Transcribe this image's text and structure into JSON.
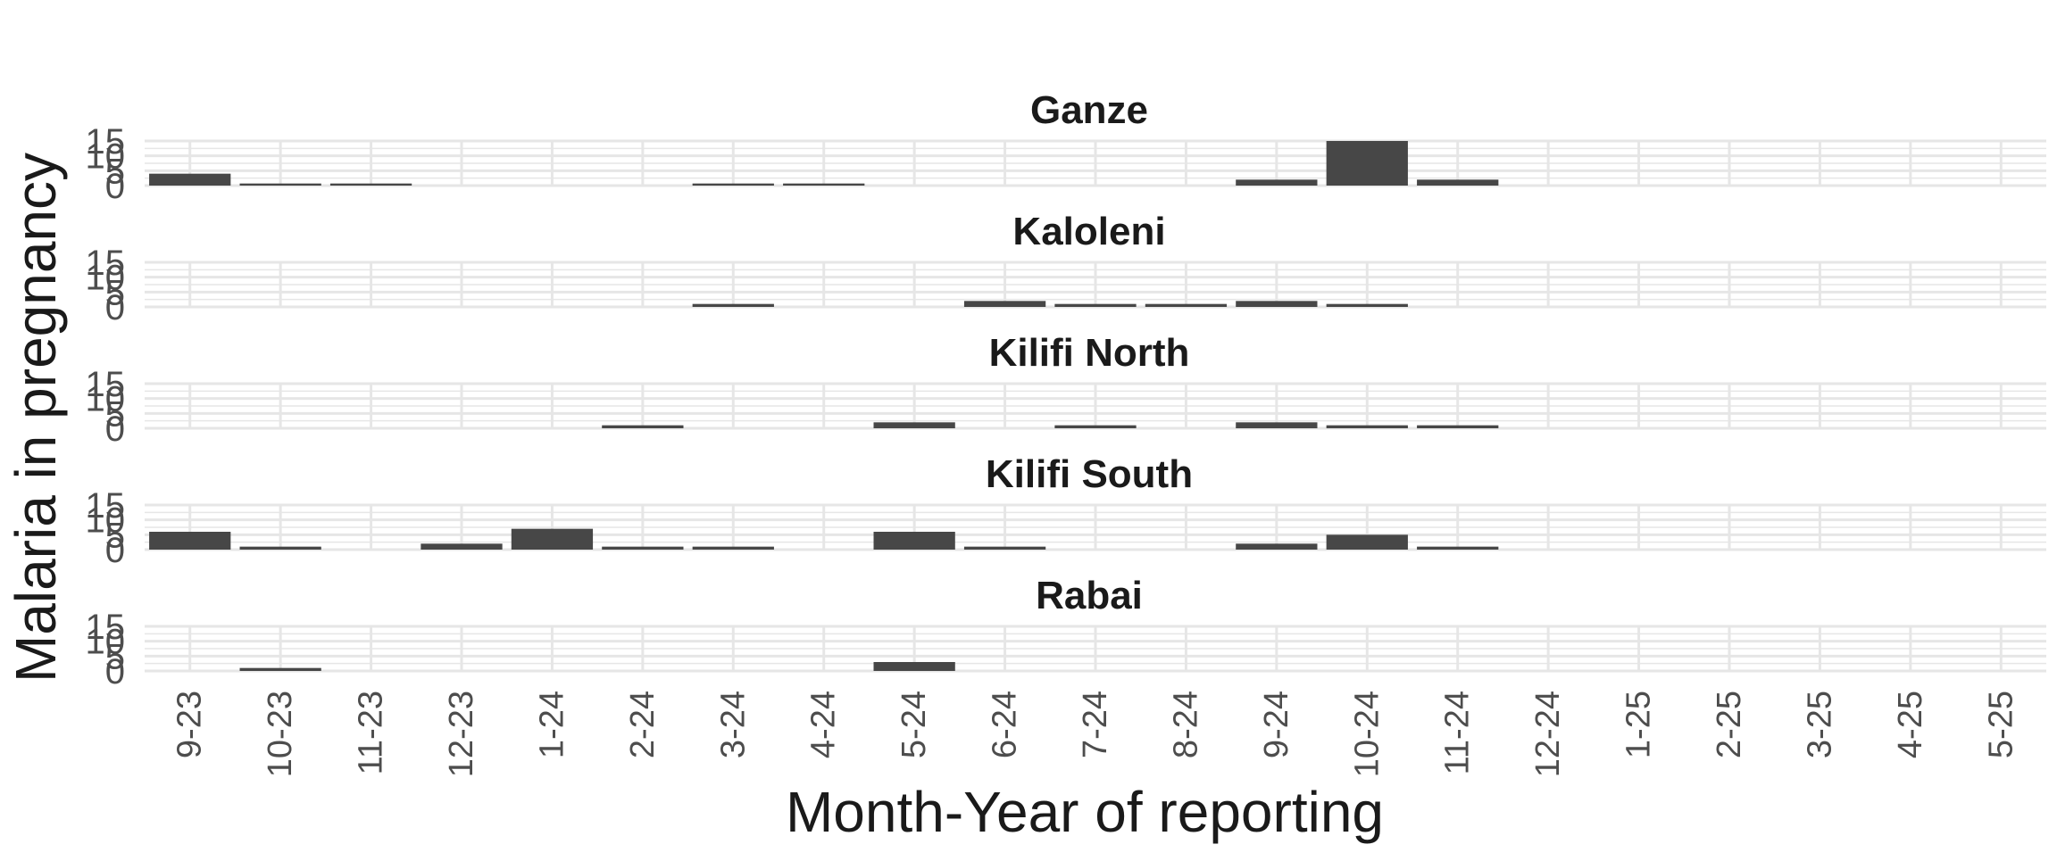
{
  "chart_data": {
    "type": "bar",
    "xlabel": "Month-Year of reporting",
    "ylabel": "Malaria in pregnancy",
    "ylim": [
      0,
      15
    ],
    "yticks": [
      0,
      5,
      10,
      15
    ],
    "grid": true,
    "bar_color": "#474747",
    "grid_color": "#e6e6e6",
    "categories": [
      "9-23",
      "10-23",
      "11-23",
      "12-23",
      "1-24",
      "2-24",
      "3-24",
      "4-24",
      "5-24",
      "6-24",
      "7-24",
      "8-24",
      "9-24",
      "10-24",
      "11-24",
      "12-24",
      "1-25",
      "2-25",
      "3-25",
      "4-25",
      "5-25"
    ],
    "panels": [
      {
        "title": "Ganze",
        "values": [
          4,
          0.7,
          0.7,
          null,
          null,
          null,
          0.7,
          0.7,
          null,
          null,
          null,
          null,
          2,
          15,
          2,
          null,
          null,
          null,
          null,
          null,
          null
        ]
      },
      {
        "title": "Kaloleni",
        "values": [
          null,
          null,
          null,
          null,
          null,
          null,
          1,
          null,
          null,
          2,
          1,
          1,
          2,
          1,
          null,
          null,
          null,
          null,
          null,
          null,
          null
        ]
      },
      {
        "title": "Kilifi North",
        "values": [
          null,
          null,
          null,
          null,
          null,
          1,
          null,
          null,
          2,
          null,
          1,
          null,
          2,
          1,
          1,
          null,
          null,
          null,
          null,
          null,
          null
        ]
      },
      {
        "title": "Kilifi South",
        "values": [
          6,
          1,
          null,
          2,
          7,
          1,
          1,
          null,
          6,
          1,
          null,
          null,
          2,
          5,
          1,
          null,
          null,
          null,
          null,
          null,
          null
        ]
      },
      {
        "title": "Rabai",
        "values": [
          null,
          1,
          null,
          null,
          null,
          null,
          null,
          null,
          3,
          null,
          null,
          null,
          null,
          null,
          null,
          null,
          null,
          null,
          null,
          null,
          null
        ]
      }
    ]
  }
}
